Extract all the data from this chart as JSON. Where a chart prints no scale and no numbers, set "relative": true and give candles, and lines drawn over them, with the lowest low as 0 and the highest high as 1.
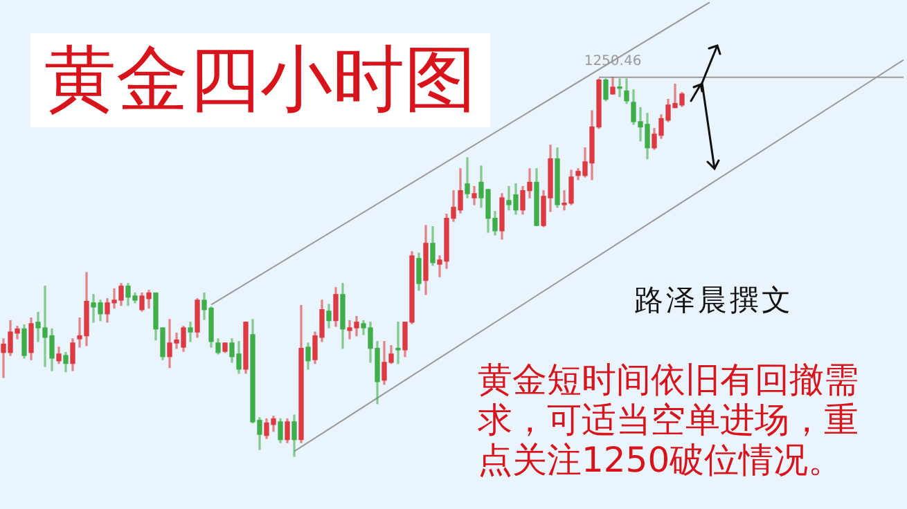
{
  "chart_data": {
    "type": "candlestick",
    "title": "黄金四小时图",
    "relative": true,
    "legend": false,
    "tick_labels": false,
    "categories": [
      null,
      null,
      null,
      null,
      null,
      null,
      null,
      null,
      null,
      null,
      null,
      null,
      null,
      null,
      null,
      null,
      null,
      null,
      null,
      null,
      null,
      null,
      null,
      null,
      null,
      null,
      null,
      null,
      null,
      null,
      null,
      null,
      null,
      null,
      null,
      null,
      null,
      null,
      null,
      null,
      null,
      null,
      null,
      null,
      null,
      null,
      null,
      null,
      null,
      null,
      null,
      null,
      null,
      null,
      null,
      null,
      null,
      null,
      null,
      null,
      null,
      null,
      null,
      null,
      null,
      null,
      null,
      null,
      null,
      null,
      null,
      null,
      null,
      null,
      null,
      null,
      null,
      null,
      null,
      null,
      null,
      null,
      null,
      null,
      null,
      null,
      null,
      null,
      null,
      null,
      null,
      null,
      null,
      null,
      null,
      null,
      null,
      null,
      null,
      null,
      null,
      null,
      null,
      null,
      null,
      null,
      null,
      null,
      null,
      null,
      null,
      null,
      null,
      null,
      null,
      null,
      null,
      null,
      null,
      null,
      null,
      null,
      null,
      null,
      null,
      null,
      null,
      null,
      null,
      null,
      null
    ],
    "ohlc": [
      [
        0.274,
        0.31,
        0.208,
        0.296
      ],
      [
        0.274,
        0.358,
        0.266,
        0.328
      ],
      [
        0.325,
        0.343,
        0.31,
        0.336
      ],
      [
        0.336,
        0.347,
        0.259,
        0.266
      ],
      [
        0.274,
        0.365,
        0.255,
        0.35
      ],
      [
        0.354,
        0.38,
        0.303,
        0.339
      ],
      [
        0.339,
        0.449,
        0.237,
        0.314
      ],
      [
        0.318,
        0.336,
        0.226,
        0.259
      ],
      [
        0.252,
        0.288,
        0.245,
        0.27
      ],
      [
        0.266,
        0.274,
        0.223,
        0.245
      ],
      [
        0.245,
        0.31,
        0.226,
        0.299
      ],
      [
        0.31,
        0.365,
        0.288,
        0.318
      ],
      [
        0.318,
        0.485,
        0.292,
        0.409
      ],
      [
        0.405,
        0.427,
        0.354,
        0.394
      ],
      [
        0.405,
        0.412,
        0.358,
        0.376
      ],
      [
        0.376,
        0.416,
        0.354,
        0.405
      ],
      [
        0.405,
        0.442,
        0.391,
        0.412
      ],
      [
        0.412,
        0.456,
        0.398,
        0.449
      ],
      [
        0.449,
        0.456,
        0.398,
        0.42
      ],
      [
        0.423,
        0.431,
        0.405,
        0.412
      ],
      [
        0.387,
        0.431,
        0.383,
        0.423
      ],
      [
        0.416,
        0.438,
        0.391,
        0.431
      ],
      [
        0.431,
        0.431,
        0.307,
        0.336
      ],
      [
        0.339,
        0.339,
        0.255,
        0.263
      ],
      [
        0.263,
        0.361,
        0.234,
        0.299
      ],
      [
        0.299,
        0.325,
        0.285,
        0.307
      ],
      [
        0.288,
        0.343,
        0.277,
        0.339
      ],
      [
        0.339,
        0.354,
        0.303,
        0.328
      ],
      [
        0.328,
        0.416,
        0.314,
        0.412
      ],
      [
        0.412,
        0.431,
        0.361,
        0.387
      ],
      [
        0.391,
        0.394,
        0.288,
        0.303
      ],
      [
        0.299,
        0.31,
        0.27,
        0.274
      ],
      [
        0.277,
        0.299,
        0.274,
        0.299
      ],
      [
        0.299,
        0.31,
        0.248,
        0.263
      ],
      [
        0.27,
        0.303,
        0.219,
        0.23
      ],
      [
        0.23,
        0.354,
        0.219,
        0.354
      ],
      [
        0.321,
        0.361,
        0.088,
        0.091
      ],
      [
        0.095,
        0.102,
        0.018,
        0.058
      ],
      [
        0.055,
        0.099,
        0.047,
        0.088
      ],
      [
        0.084,
        0.106,
        0.066,
        0.099
      ],
      [
        0.091,
        0.099,
        0.036,
        0.044
      ],
      [
        0.044,
        0.099,
        0.036,
        0.091
      ],
      [
        0.091,
        0.109,
        0.0,
        0.044
      ],
      [
        0.044,
        0.398,
        0.036,
        0.285
      ],
      [
        0.288,
        0.299,
        0.23,
        0.252
      ],
      [
        0.255,
        0.328,
        0.245,
        0.318
      ],
      [
        0.314,
        0.412,
        0.303,
        0.387
      ],
      [
        0.383,
        0.401,
        0.339,
        0.358
      ],
      [
        0.358,
        0.445,
        0.343,
        0.427
      ],
      [
        0.427,
        0.456,
        0.285,
        0.336
      ],
      [
        0.332,
        0.358,
        0.31,
        0.339
      ],
      [
        0.339,
        0.369,
        0.318,
        0.354
      ],
      [
        0.35,
        0.358,
        0.321,
        0.339
      ],
      [
        0.339,
        0.354,
        0.248,
        0.285
      ],
      [
        0.285,
        0.303,
        0.139,
        0.197
      ],
      [
        0.201,
        0.303,
        0.19,
        0.248
      ],
      [
        0.248,
        0.292,
        0.245,
        0.27
      ],
      [
        0.285,
        0.354,
        0.245,
        0.281
      ],
      [
        0.281,
        0.354,
        0.263,
        0.354
      ],
      [
        0.354,
        0.54,
        0.35,
        0.529
      ],
      [
        0.522,
        0.536,
        0.438,
        0.456
      ],
      [
        0.464,
        0.609,
        0.427,
        0.562
      ],
      [
        0.562,
        0.606,
        0.504,
        0.511
      ],
      [
        0.507,
        0.529,
        0.474,
        0.518
      ],
      [
        0.515,
        0.639,
        0.496,
        0.628
      ],
      [
        0.628,
        0.701,
        0.62,
        0.657
      ],
      [
        0.65,
        0.759,
        0.642,
        0.701
      ],
      [
        0.719,
        0.788,
        0.682,
        0.693
      ],
      [
        0.682,
        0.712,
        0.664,
        0.693
      ],
      [
        0.723,
        0.766,
        0.657,
        0.682
      ],
      [
        0.704,
        0.704,
        0.591,
        0.628
      ],
      [
        0.628,
        0.646,
        0.584,
        0.595
      ],
      [
        0.595,
        0.693,
        0.573,
        0.682
      ],
      [
        0.675,
        0.712,
        0.65,
        0.664
      ],
      [
        0.69,
        0.719,
        0.639,
        0.65
      ],
      [
        0.65,
        0.712,
        0.639,
        0.701
      ],
      [
        0.701,
        0.759,
        0.682,
        0.723
      ],
      [
        0.723,
        0.759,
        0.609,
        0.609
      ],
      [
        0.609,
        0.701,
        0.606,
        0.686
      ],
      [
        0.682,
        0.821,
        0.646,
        0.785
      ],
      [
        0.785,
        0.814,
        0.657,
        0.664
      ],
      [
        0.664,
        0.701,
        0.65,
        0.668
      ],
      [
        0.668,
        0.755,
        0.664,
        0.737
      ],
      [
        0.741,
        0.759,
        0.73,
        0.752
      ],
      [
        0.741,
        0.814,
        0.737,
        0.777
      ],
      [
        0.774,
        0.912,
        0.73,
        0.869
      ],
      [
        0.869,
        0.996,
        0.865,
        0.993
      ],
      [
        0.993,
        0.996,
        0.938,
        0.942
      ],
      [
        0.956,
        1.0,
        0.956,
        0.974
      ],
      [
        0.974,
        0.996,
        0.949,
        0.971
      ],
      [
        0.964,
        0.996,
        0.931,
        0.938
      ],
      [
        0.934,
        0.967,
        0.876,
        0.883
      ],
      [
        0.883,
        0.92,
        0.832,
        0.869
      ],
      [
        0.876,
        0.905,
        0.785,
        0.814
      ],
      [
        0.814,
        0.865,
        0.81,
        0.85
      ],
      [
        0.847,
        0.901,
        0.839,
        0.891
      ],
      [
        0.887,
        0.942,
        0.883,
        0.927
      ],
      [
        0.92,
        0.982,
        0.92,
        0.931
      ],
      [
        0.927,
        0.96,
        0.923,
        0.956
      ],
      null,
      null,
      null,
      null,
      null,
      null,
      null,
      null,
      null,
      null,
      null,
      null,
      null,
      null,
      null,
      null,
      null,
      null,
      null,
      null,
      null,
      null,
      null,
      null,
      null,
      null,
      null,
      null,
      null,
      null,
      null,
      null
    ],
    "series": [
      {
        "type": "line",
        "color": "#9a9a9a",
        "values": [
          null,
          null,
          null,
          null,
          null,
          null,
          null,
          null,
          null,
          null,
          null,
          null,
          null,
          null,
          null,
          null,
          null,
          null,
          null,
          null,
          null,
          null,
          null,
          null,
          null,
          null,
          null,
          null,
          null,
          null,
          0.4,
          null,
          null,
          null,
          null,
          null,
          null,
          null,
          null,
          null,
          null,
          null,
          null,
          null,
          null,
          null,
          null,
          null,
          null,
          null,
          null,
          null,
          null,
          null,
          null,
          null,
          null,
          null,
          null,
          null,
          null,
          null,
          null,
          null,
          null,
          null,
          null,
          null,
          null,
          null,
          null,
          null,
          null,
          null,
          null,
          null,
          null,
          null,
          null,
          null,
          null,
          null,
          null,
          null,
          null,
          null,
          null,
          null,
          null,
          null,
          null,
          null,
          null,
          null,
          null,
          null,
          null,
          null,
          null,
          null,
          null,
          null,
          1.198,
          null,
          null,
          null,
          null,
          null,
          null,
          null,
          null,
          null,
          null,
          null,
          null,
          null,
          null,
          null,
          null,
          null,
          null,
          null,
          null,
          null,
          null,
          null,
          null,
          null,
          null,
          null,
          null
        ]
      },
      {
        "type": "line",
        "color": "#9a9a9a",
        "values": [
          null,
          null,
          null,
          null,
          null,
          null,
          null,
          null,
          null,
          null,
          null,
          null,
          null,
          null,
          null,
          null,
          null,
          null,
          null,
          null,
          null,
          null,
          null,
          null,
          null,
          null,
          null,
          null,
          null,
          null,
          null,
          null,
          null,
          null,
          null,
          null,
          null,
          null,
          null,
          null,
          null,
          null,
          0.013,
          null,
          null,
          null,
          null,
          null,
          null,
          null,
          null,
          null,
          null,
          null,
          null,
          null,
          null,
          null,
          null,
          null,
          null,
          null,
          null,
          null,
          null,
          null,
          null,
          null,
          null,
          null,
          null,
          null,
          null,
          null,
          null,
          null,
          null,
          null,
          null,
          null,
          null,
          null,
          null,
          null,
          null,
          null,
          null,
          null,
          null,
          null,
          null,
          null,
          null,
          null,
          null,
          null,
          null,
          null,
          null,
          null,
          null,
          null,
          null,
          null,
          null,
          null,
          null,
          null,
          null,
          null,
          null,
          null,
          null,
          null,
          null,
          null,
          null,
          null,
          null,
          null,
          null,
          null,
          null,
          null,
          null,
          null,
          null,
          null,
          null,
          null,
          1.046
        ]
      },
      {
        "type": "line",
        "color": "#9a9a9a",
        "values": [
          null,
          null,
          null,
          null,
          null,
          null,
          null,
          null,
          null,
          null,
          null,
          null,
          null,
          null,
          null,
          null,
          null,
          null,
          null,
          null,
          null,
          null,
          null,
          null,
          null,
          null,
          null,
          null,
          null,
          null,
          null,
          null,
          null,
          null,
          null,
          null,
          null,
          null,
          null,
          null,
          null,
          null,
          null,
          null,
          null,
          null,
          null,
          null,
          null,
          null,
          null,
          null,
          null,
          null,
          null,
          null,
          null,
          null,
          null,
          null,
          null,
          null,
          null,
          null,
          null,
          null,
          null,
          null,
          null,
          null,
          null,
          null,
          null,
          null,
          null,
          null,
          null,
          null,
          null,
          null,
          null,
          null,
          null,
          null,
          null,
          null,
          1.0,
          null,
          null,
          null,
          null,
          null,
          null,
          null,
          null,
          null,
          null,
          null,
          null,
          null,
          null,
          null,
          null,
          null,
          null,
          null,
          null,
          null,
          null,
          null,
          null,
          null,
          null,
          null,
          null,
          null,
          null,
          null,
          null,
          null,
          null,
          null,
          null,
          null,
          null,
          null,
          null,
          null,
          null,
          null,
          1.0
        ]
      }
    ],
    "annotations": [
      {
        "text": "1250.46",
        "y": 1
      },
      "路泽晨撰文",
      "黄金短时间依旧有回撤需求，可适当空单进场，重点关注1250破位情况。"
    ]
  }
}
